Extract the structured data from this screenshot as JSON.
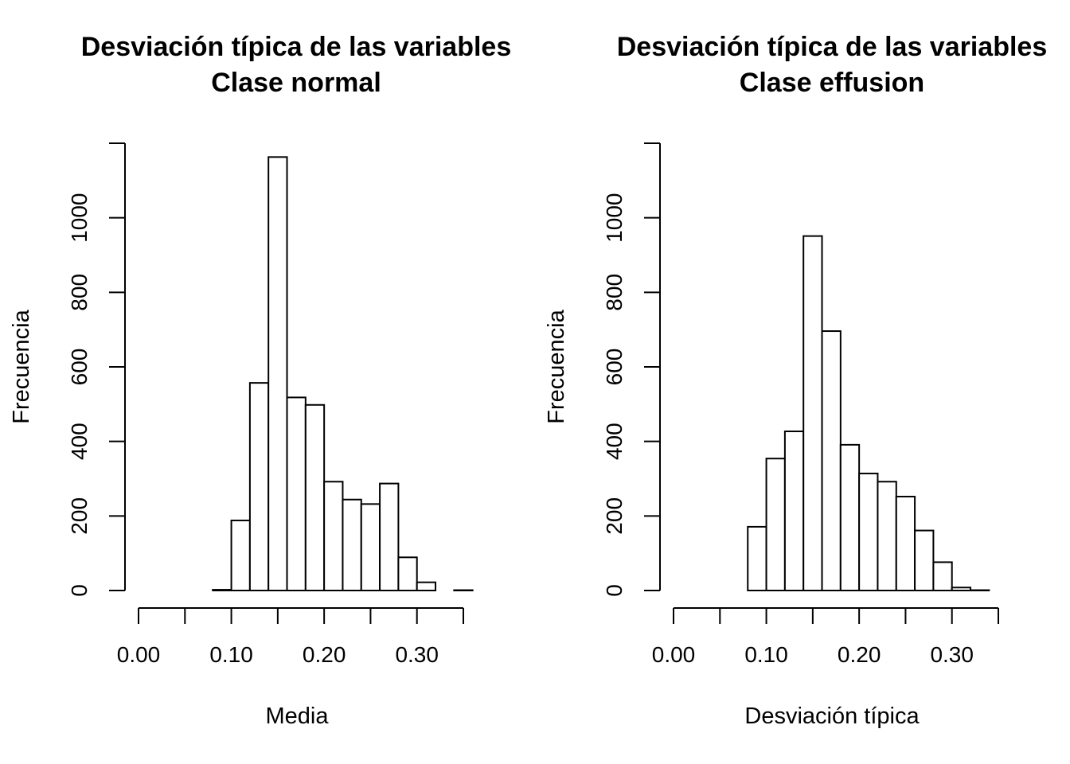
{
  "chart_data": [
    {
      "type": "bar",
      "title_line1": "Desviación típica de las variables",
      "title_line2": "Clase normal",
      "xlabel": "Media",
      "ylabel": "Frecuencia",
      "xlim": [
        0.0,
        0.35
      ],
      "ylim": [
        0,
        1200
      ],
      "bin_width": 0.02,
      "bin_starts": [
        0.08,
        0.1,
        0.12,
        0.14,
        0.16,
        0.18,
        0.2,
        0.22,
        0.24,
        0.26,
        0.28,
        0.3,
        0.32,
        0.34
      ],
      "values": [
        2,
        188,
        557,
        1163,
        518,
        498,
        292,
        244,
        232,
        287,
        89,
        22,
        0,
        1
      ],
      "xticks": [
        0.0,
        0.05,
        0.1,
        0.15,
        0.2,
        0.25,
        0.3,
        0.35
      ],
      "xtick_labels": [
        "0.00",
        "",
        "0.10",
        "",
        "0.20",
        "",
        "0.30",
        ""
      ],
      "yticks": [
        0,
        200,
        400,
        600,
        800,
        1000,
        1200
      ],
      "ytick_labels": [
        "0",
        "200",
        "400",
        "600",
        "800",
        "1000",
        ""
      ]
    },
    {
      "type": "bar",
      "title_line1": "Desviación típica de las variables",
      "title_line2": "Clase effusion",
      "xlabel": "Desviación típica",
      "ylabel": "Frecuencia",
      "xlim": [
        0.0,
        0.35
      ],
      "ylim": [
        0,
        1200
      ],
      "bin_width": 0.02,
      "bin_starts": [
        0.08,
        0.1,
        0.12,
        0.14,
        0.16,
        0.18,
        0.2,
        0.22,
        0.24,
        0.26,
        0.28,
        0.3,
        0.32
      ],
      "values": [
        171,
        354,
        427,
        951,
        696,
        391,
        314,
        292,
        252,
        161,
        76,
        8,
        1
      ],
      "xticks": [
        0.0,
        0.05,
        0.1,
        0.15,
        0.2,
        0.25,
        0.3,
        0.35
      ],
      "xtick_labels": [
        "0.00",
        "",
        "0.10",
        "",
        "0.20",
        "",
        "0.30",
        ""
      ],
      "yticks": [
        0,
        200,
        400,
        600,
        800,
        1000,
        1200
      ],
      "ytick_labels": [
        "0",
        "200",
        "400",
        "600",
        "800",
        "1000",
        ""
      ]
    }
  ]
}
